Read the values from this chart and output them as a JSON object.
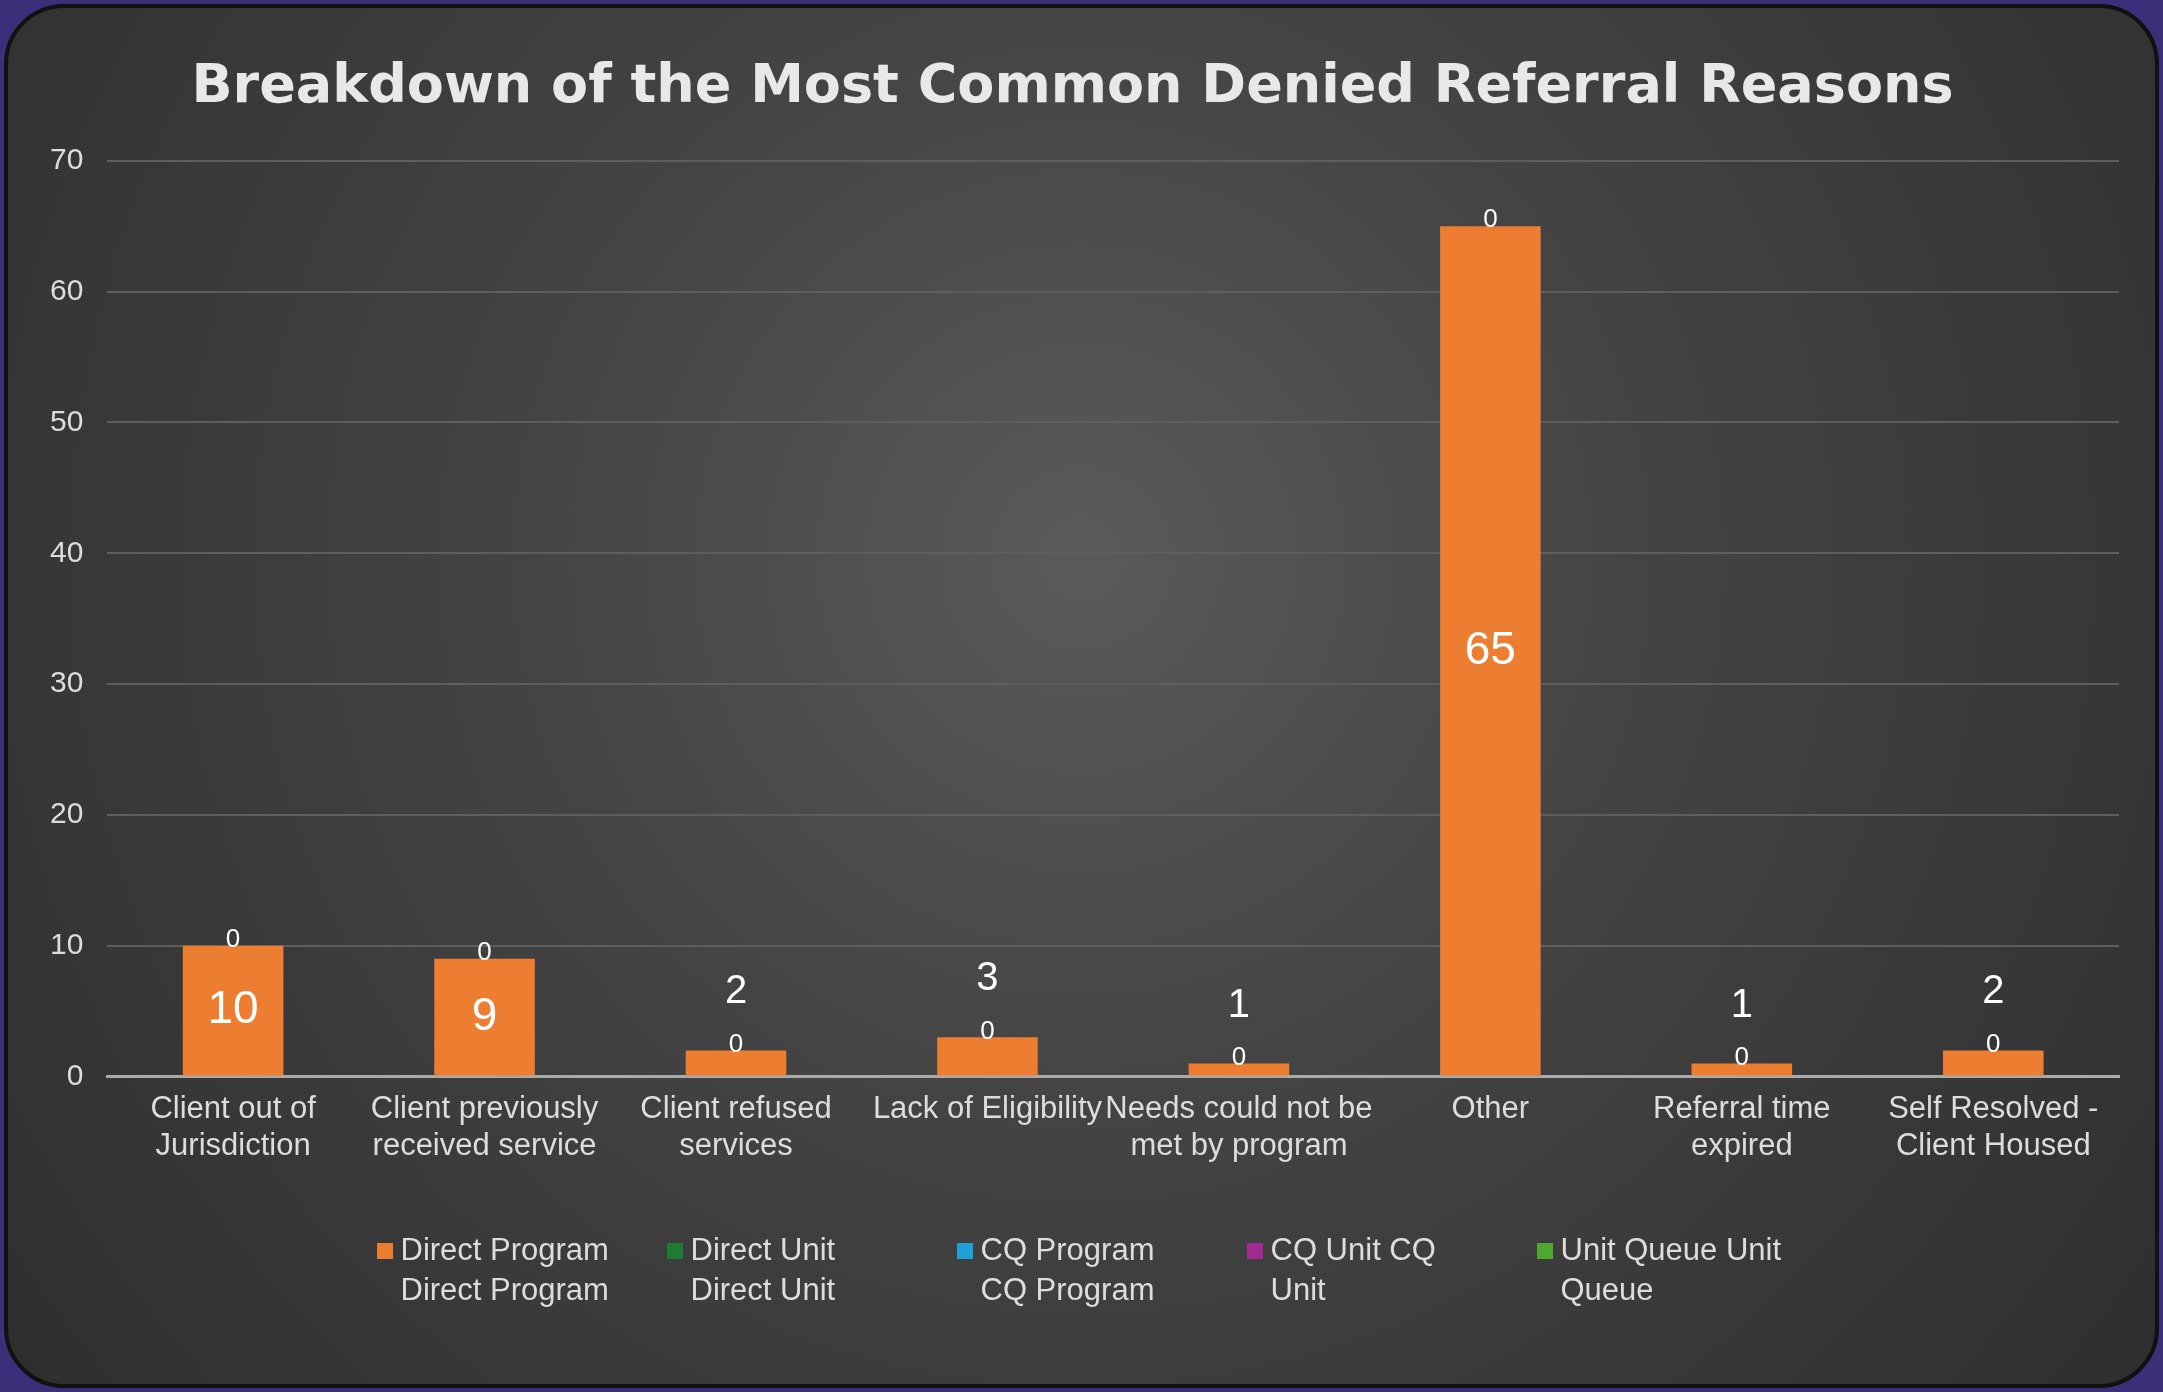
{
  "chart_data": {
    "type": "bar",
    "title": "Breakdown of the Most Common Denied Referral Reasons",
    "categories": [
      "Client out of Jurisdiction",
      "Client previously received service",
      "Client refused services",
      "Lack of Eligibility",
      "Needs could not be met by program",
      "Other",
      "Referral time expired",
      "Self Resolved - Client Housed"
    ],
    "stacked": true,
    "series": [
      {
        "name": "Direct Program Direct Program",
        "color": "#ed7d31",
        "values": [
          10,
          9,
          2,
          3,
          1,
          65,
          1,
          2
        ],
        "value_labels": [
          "10",
          "9",
          "2",
          "3",
          "1",
          "65",
          "1",
          "2"
        ]
      },
      {
        "name": "Direct Unit Direct Unit",
        "color": "#1e7b34",
        "values": [
          0,
          0,
          0,
          0,
          0,
          0,
          0,
          0
        ]
      },
      {
        "name": "CQ Program CQ Program",
        "color": "#1fa0d8",
        "values": [
          0,
          0,
          0,
          0,
          0,
          0,
          0,
          0
        ]
      },
      {
        "name": "CQ Unit CQ Unit",
        "color": "#a02b93",
        "values": [
          0,
          0,
          0,
          0,
          0,
          0,
          0,
          0
        ]
      },
      {
        "name": "Unit Queue Unit Queue",
        "color": "#4ea72e",
        "values": [
          0,
          0,
          0,
          0,
          0,
          0,
          0,
          0
        ],
        "value_labels": [
          "0",
          "0",
          "0",
          "0",
          "0",
          "0",
          "0",
          "0"
        ]
      }
    ],
    "ylim": [
      0,
      70
    ],
    "yticks": [
      0,
      10,
      20,
      30,
      40,
      50,
      60,
      70
    ],
    "grid": "y",
    "legend": "bottom"
  }
}
